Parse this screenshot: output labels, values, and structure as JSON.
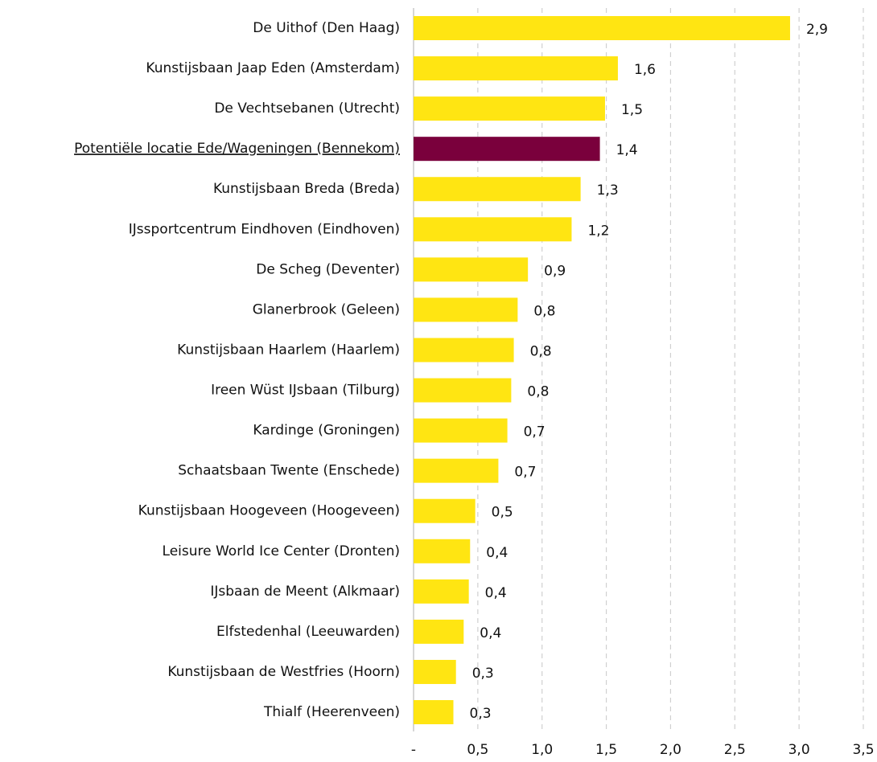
{
  "chart_data": {
    "type": "barh",
    "categories": [
      "De Uithof (Den Haag)",
      "Kunstijsbaan Jaap Eden (Amsterdam)",
      "De Vechtsebanen (Utrecht)",
      "Potentiële locatie Ede/Wageningen (Bennekom)",
      "Kunstijsbaan Breda (Breda)",
      "IJssportcentrum Eindhoven (Eindhoven)",
      "De Scheg (Deventer)",
      "Glanerbrook (Geleen)",
      "Kunstijsbaan Haarlem (Haarlem)",
      "Ireen Wüst IJsbaan (Tilburg)",
      "Kardinge (Groningen)",
      "Schaatsbaan Twente (Enschede)",
      "Kunstijsbaan Hoogeveen (Hoogeveen)",
      "Leisure World Ice Center (Dronten)",
      "IJsbaan de Meent (Alkmaar)",
      "Elfstedenhal (Leeuwarden)",
      "Kunstijsbaan de Westfries (Hoorn)",
      "Thialf (Heerenveen)"
    ],
    "values": [
      2.93,
      1.59,
      1.49,
      1.45,
      1.3,
      1.23,
      0.89,
      0.81,
      0.78,
      0.76,
      0.73,
      0.66,
      0.48,
      0.44,
      0.43,
      0.39,
      0.33,
      0.31
    ],
    "value_labels": [
      "2,9",
      "1,6",
      "1,5",
      "1,4",
      "1,3",
      "1,2",
      "0,9",
      "0,8",
      "0,8",
      "0,8",
      "0,7",
      "0,7",
      "0,5",
      "0,4",
      "0,4",
      "0,4",
      "0,3",
      "0,3"
    ],
    "color": "#ffe512",
    "highlight_color": "#7a003c",
    "highlight_index": 3,
    "xlim": [
      0,
      3.5
    ],
    "xticks": [
      {
        "value": 0,
        "label": "-"
      },
      {
        "value": 0.5,
        "label": "0,5"
      },
      {
        "value": 1.0,
        "label": "1,0"
      },
      {
        "value": 1.5,
        "label": "1,5"
      },
      {
        "value": 2.0,
        "label": "2,0"
      },
      {
        "value": 2.5,
        "label": "2,5"
      },
      {
        "value": 3.0,
        "label": "3,0"
      },
      {
        "value": 3.5,
        "label": "3,5"
      }
    ],
    "grid": true
  }
}
